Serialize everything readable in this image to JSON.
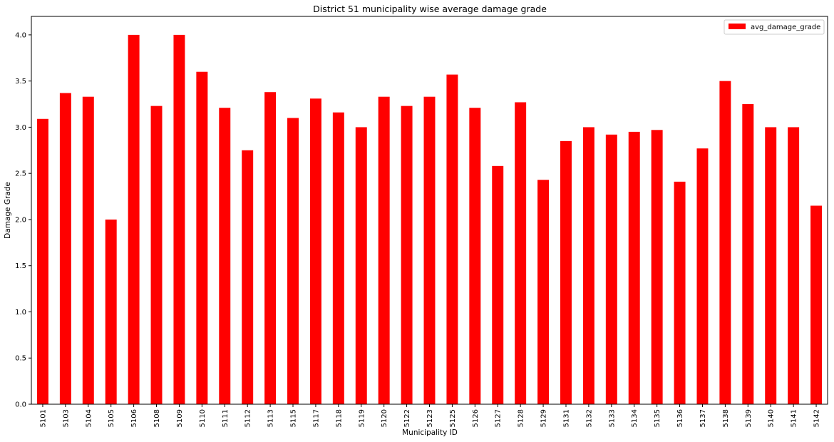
{
  "chart_data": {
    "type": "bar",
    "title": "District 51 municipality wise average damage grade",
    "xlabel": "Municipality ID",
    "ylabel": "Damage Grade",
    "ylim": [
      0,
      4.2
    ],
    "yticks": [
      "0.0",
      "0.5",
      "1.0",
      "1.5",
      "2.0",
      "2.5",
      "3.0",
      "3.5",
      "4.0"
    ],
    "grid": false,
    "legend_position": "top-right",
    "bar_color": "#ff0000",
    "categories": [
      "5101",
      "5103",
      "5104",
      "5105",
      "5106",
      "5108",
      "5109",
      "5110",
      "5111",
      "5112",
      "5113",
      "5115",
      "5117",
      "5118",
      "5119",
      "5120",
      "5122",
      "5123",
      "5125",
      "5126",
      "5127",
      "5128",
      "5129",
      "5131",
      "5132",
      "5133",
      "5134",
      "5135",
      "5136",
      "5137",
      "5138",
      "5139",
      "5140",
      "5141",
      "5142"
    ],
    "series": [
      {
        "name": "avg_damage_grade",
        "color": "#ff0000",
        "values": [
          3.09,
          3.37,
          3.33,
          2.0,
          4.0,
          3.23,
          4.0,
          3.6,
          3.21,
          2.75,
          3.38,
          3.1,
          3.31,
          3.16,
          3.0,
          3.33,
          3.23,
          3.33,
          3.57,
          3.21,
          2.58,
          3.27,
          2.43,
          2.85,
          3.0,
          2.92,
          2.95,
          2.97,
          2.41,
          2.77,
          3.5,
          3.25,
          3.0,
          3.0,
          2.15
        ]
      }
    ]
  }
}
